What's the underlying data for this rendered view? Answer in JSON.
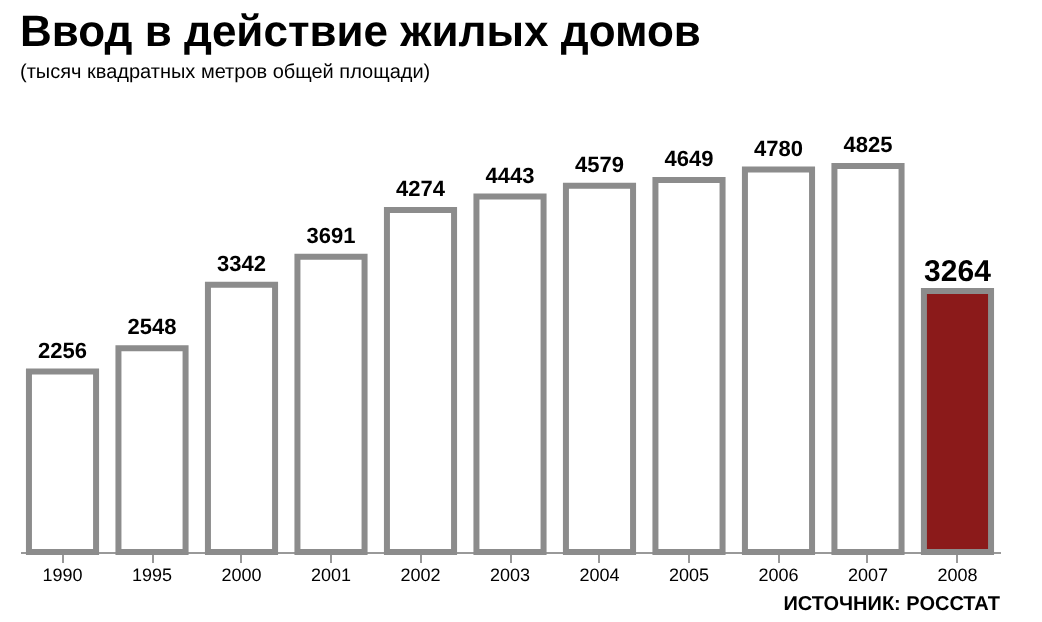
{
  "chart_data": {
    "type": "bar",
    "title": "Ввод в действие жилых домов",
    "subtitle": "(тысяч квадратных метров общей площади)",
    "categories": [
      "1990",
      "1995",
      "2000",
      "2001",
      "2002",
      "2003",
      "2004",
      "2005",
      "2006",
      "2007",
      "2008"
    ],
    "values": [
      2256,
      2548,
      3342,
      3691,
      4274,
      4443,
      4579,
      4649,
      4780,
      4825,
      3264
    ],
    "colors": [
      "#ffffff",
      "#ffffff",
      "#ffffff",
      "#ffffff",
      "#ffffff",
      "#ffffff",
      "#ffffff",
      "#ffffff",
      "#ffffff",
      "#ffffff",
      "#8b1a1a"
    ],
    "data_labels": true,
    "grid": false,
    "annotations": [
      "ИСТОЧНИК: РОССТАТ"
    ]
  }
}
